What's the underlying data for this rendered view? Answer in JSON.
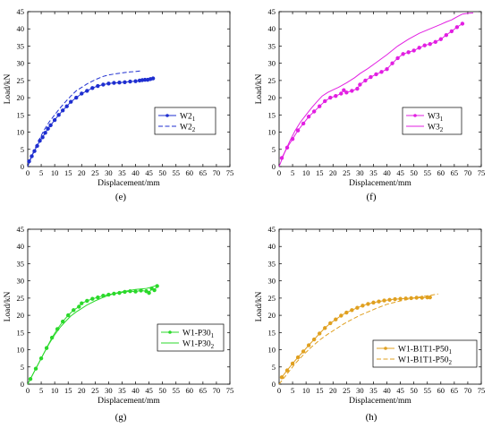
{
  "chart_data": [
    {
      "type": "line",
      "panel_label": "(e)",
      "xlabel": "Displacement/mm",
      "ylabel": "Load/kN",
      "xlim": [
        0,
        75
      ],
      "ylim": [
        0,
        45
      ],
      "xticks": [
        0,
        5,
        10,
        15,
        20,
        25,
        30,
        35,
        40,
        45,
        50,
        55,
        60,
        65,
        70,
        75
      ],
      "yticks": [
        0,
        5,
        10,
        15,
        20,
        25,
        30,
        35,
        40,
        45
      ],
      "color": "#1f2fd0",
      "legend_position": "center-right",
      "series": [
        {
          "name": "W2",
          "subscript": "1",
          "style": "solid-markers",
          "x": [
            0.5,
            1.5,
            2.5,
            3.5,
            4.5,
            5.5,
            6.5,
            7.5,
            8.5,
            10,
            11.5,
            13,
            14.5,
            16,
            18,
            20,
            22,
            24,
            26,
            28,
            30,
            32,
            34,
            36,
            38,
            40,
            41.5,
            42.5,
            43.5,
            44.5,
            45.5,
            46.5
          ],
          "y": [
            1.5,
            3.0,
            4.5,
            6.0,
            7.5,
            8.5,
            9.8,
            11.0,
            12.0,
            13.5,
            15.0,
            16.3,
            17.5,
            18.8,
            20.0,
            21.2,
            22.0,
            22.8,
            23.4,
            23.8,
            24.1,
            24.3,
            24.4,
            24.5,
            24.7,
            24.8,
            25.0,
            25.1,
            25.2,
            25.2,
            25.4,
            25.6
          ]
        },
        {
          "name": "W2",
          "subscript": "2",
          "style": "dashed",
          "x": [
            0,
            2,
            4,
            6,
            8,
            10,
            12,
            14,
            16,
            18,
            20,
            22,
            25,
            28,
            30,
            33,
            36,
            38,
            40,
            42
          ],
          "y": [
            0,
            4,
            7.5,
            10.5,
            13,
            15,
            17,
            18.8,
            20.5,
            22,
            23,
            24,
            25.2,
            26.2,
            26.6,
            27,
            27.3,
            27.5,
            27.6,
            27.8
          ]
        }
      ]
    },
    {
      "type": "line",
      "panel_label": "(f)",
      "xlabel": "Displacement/mm",
      "ylabel": "Load/kN",
      "xlim": [
        0,
        75
      ],
      "ylim": [
        0,
        45
      ],
      "xticks": [
        0,
        5,
        10,
        15,
        20,
        25,
        30,
        35,
        40,
        45,
        50,
        55,
        60,
        65,
        70,
        75
      ],
      "yticks": [
        0,
        5,
        10,
        15,
        20,
        25,
        30,
        35,
        40,
        45
      ],
      "color": "#e21fe2",
      "legend_position": "center-right",
      "series": [
        {
          "name": "W3",
          "subscript": "1",
          "style": "solid-markers",
          "x": [
            1,
            3,
            5,
            7,
            9,
            11,
            13,
            15,
            17,
            19,
            21,
            23,
            24,
            25,
            27,
            29,
            30,
            32,
            34,
            36,
            38,
            40,
            42,
            44,
            46,
            48,
            50,
            52,
            54,
            56,
            58,
            60,
            62,
            64,
            66,
            68
          ],
          "y": [
            2.5,
            5.5,
            8,
            10.5,
            12.5,
            14.5,
            16,
            17.5,
            19,
            20,
            20.5,
            21.2,
            22.2,
            21.5,
            22,
            22.6,
            23.8,
            25,
            26,
            26.8,
            27.5,
            28.3,
            30,
            31.5,
            32.7,
            33.2,
            33.7,
            34.5,
            35.2,
            35.6,
            36.2,
            37,
            38.2,
            39.3,
            40.5,
            41.5
          ]
        },
        {
          "name": "W3",
          "subscript": "2",
          "style": "solid",
          "x": [
            0,
            2,
            4,
            6,
            8,
            10,
            12,
            14,
            16,
            18,
            20,
            22,
            25,
            28,
            30,
            33,
            36,
            40,
            44,
            48,
            52,
            56,
            60,
            62,
            64,
            66,
            68,
            70,
            72
          ],
          "y": [
            0,
            4,
            7.5,
            10.5,
            13,
            15,
            17,
            18.8,
            20.5,
            21.5,
            22.3,
            23,
            24.3,
            25.8,
            27,
            28.5,
            30.2,
            32.5,
            35,
            37,
            38.7,
            40,
            41.3,
            42,
            42.6,
            43.5,
            44.3,
            44.5,
            44.6
          ]
        }
      ]
    },
    {
      "type": "line",
      "panel_label": "(g)",
      "xlabel": "Displacement/mm",
      "ylabel": "Load/kN",
      "xlim": [
        0,
        75
      ],
      "ylim": [
        0,
        45
      ],
      "xticks": [
        0,
        5,
        10,
        15,
        20,
        25,
        30,
        35,
        40,
        45,
        50,
        55,
        60,
        65,
        70,
        75
      ],
      "yticks": [
        0,
        5,
        10,
        15,
        20,
        25,
        30,
        35,
        40,
        45
      ],
      "color": "#2bd92b",
      "legend_position": "center-right",
      "series": [
        {
          "name": "W1-P30",
          "subscript": "1",
          "style": "solid-markers",
          "x": [
            1,
            3,
            5,
            7,
            9,
            11,
            13,
            15,
            17,
            19,
            20,
            22,
            24,
            26,
            28,
            30,
            32,
            34,
            36,
            38,
            40,
            42,
            44,
            45,
            46,
            47,
            48
          ],
          "y": [
            1.5,
            4.5,
            7.5,
            10.5,
            13.5,
            16,
            18.2,
            20,
            21.5,
            22.5,
            23.5,
            24.2,
            24.8,
            25.2,
            25.7,
            26,
            26.3,
            26.5,
            26.8,
            27,
            26.9,
            27.2,
            27,
            26.5,
            27.8,
            27.3,
            28.5
          ]
        },
        {
          "name": "W1-P30",
          "subscript": "2",
          "style": "solid",
          "x": [
            0,
            2,
            4,
            6,
            8,
            10,
            12,
            14,
            16,
            18,
            20,
            22,
            25,
            28,
            30,
            33,
            36,
            40,
            44,
            46,
            48
          ],
          "y": [
            0,
            3,
            6,
            9,
            11.8,
            14.3,
            16.5,
            18.2,
            19.8,
            21,
            22,
            23,
            24.2,
            25.2,
            25.8,
            26.5,
            27,
            27.5,
            27.8,
            28.2,
            28.8
          ]
        }
      ]
    },
    {
      "type": "line",
      "panel_label": "(h)",
      "xlabel": "Displacement/mm",
      "ylabel": "Load/kN",
      "xlim": [
        0,
        75
      ],
      "ylim": [
        0,
        45
      ],
      "xticks": [
        0,
        5,
        10,
        15,
        20,
        25,
        30,
        35,
        40,
        45,
        50,
        55,
        60,
        65,
        70,
        75
      ],
      "yticks": [
        0,
        5,
        10,
        15,
        20,
        25,
        30,
        35,
        40,
        45
      ],
      "color": "#e0a020",
      "legend_position": "bottom-right",
      "series": [
        {
          "name": "W1-B1T1-P50",
          "subscript": "1",
          "style": "solid-markers",
          "x": [
            1,
            3,
            5,
            7,
            9,
            11,
            13,
            15,
            17,
            19,
            21,
            23,
            25,
            27,
            29,
            31,
            33,
            35,
            37,
            39,
            41,
            43,
            45,
            47,
            49,
            51,
            53,
            55,
            56
          ],
          "y": [
            2,
            4,
            6,
            7.8,
            9.5,
            11.3,
            13,
            14.7,
            16.3,
            17.7,
            18.8,
            19.9,
            20.8,
            21.5,
            22.2,
            22.8,
            23.3,
            23.7,
            24,
            24.3,
            24.5,
            24.7,
            24.8,
            24.9,
            25,
            25.1,
            25.1,
            25.2,
            25.2
          ]
        },
        {
          "name": "W1-B1T1-P50",
          "subscript": "2",
          "style": "dashed",
          "x": [
            0,
            3,
            6,
            9,
            12,
            15,
            18,
            21,
            24,
            27,
            30,
            33,
            36,
            40,
            44,
            48,
            52,
            56,
            59
          ],
          "y": [
            0,
            3,
            6,
            8.5,
            10.8,
            12.8,
            14.5,
            16,
            17.5,
            18.8,
            20,
            21,
            22,
            23.2,
            24,
            24.7,
            25.3,
            25.8,
            26.2
          ]
        }
      ]
    }
  ]
}
